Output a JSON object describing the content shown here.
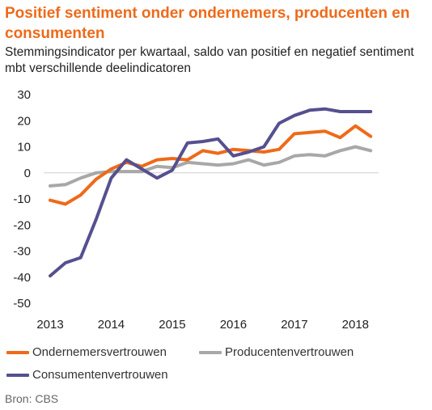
{
  "title": "Positief sentiment onder ondernemers, producenten en consumenten",
  "subtitle": "Stemmingsindicator per kwartaal, saldo van positief en negatief sentiment mbt verschillende deelindicatoren",
  "source": "Bron: CBS",
  "chart_data": {
    "type": "line",
    "title": "Positief sentiment onder ondernemers, producenten en consumenten",
    "subtitle": "Stemmingsindicator per kwartaal, saldo van positief en negatief sentiment mbt verschillende deelindicatoren",
    "xlabel": "",
    "ylabel": "",
    "ylim": [
      -50,
      30
    ],
    "yticks": [
      30,
      20,
      10,
      0,
      -10,
      -20,
      -30,
      -40,
      -50
    ],
    "xlim": [
      2013,
      2018.3
    ],
    "xticks": [
      2013,
      2014,
      2015,
      2016,
      2017,
      2018
    ],
    "grid": false,
    "legend_position": "bottom",
    "x": [
      2013.0,
      2013.25,
      2013.5,
      2013.75,
      2014.0,
      2014.25,
      2014.5,
      2014.75,
      2015.0,
      2015.25,
      2015.5,
      2015.75,
      2016.0,
      2016.25,
      2016.5,
      2016.75,
      2017.0,
      2017.25,
      2017.5,
      2017.75,
      2018.0,
      2018.25
    ],
    "series": [
      {
        "name": "Ondernemersvertrouwen",
        "color": "#ee6a1a",
        "values": [
          -10.5,
          -12,
          -8.5,
          -2.5,
          1.5,
          4,
          2.5,
          5,
          5.5,
          5,
          8.5,
          7.5,
          9,
          8.5,
          8,
          9,
          15,
          15.5,
          16,
          13.5,
          18,
          14
        ]
      },
      {
        "name": "Producentenvertrouwen",
        "color": "#a8a8a8",
        "values": [
          -5,
          -4.5,
          -2,
          0,
          0.5,
          0.5,
          0.5,
          2.5,
          2,
          4,
          3.5,
          3,
          3.5,
          5,
          3,
          4,
          6.5,
          7,
          6.5,
          8.5,
          10,
          8.5
        ]
      },
      {
        "name": "Consumentenvertrouwen",
        "color": "#55508f",
        "values": [
          -39.5,
          -34.5,
          -32.5,
          -18,
          -2,
          5,
          1.5,
          -2,
          1,
          11.5,
          12,
          13,
          6.5,
          8,
          10,
          19,
          22,
          24,
          24.5,
          23.5,
          23.5,
          23.5
        ]
      }
    ]
  }
}
